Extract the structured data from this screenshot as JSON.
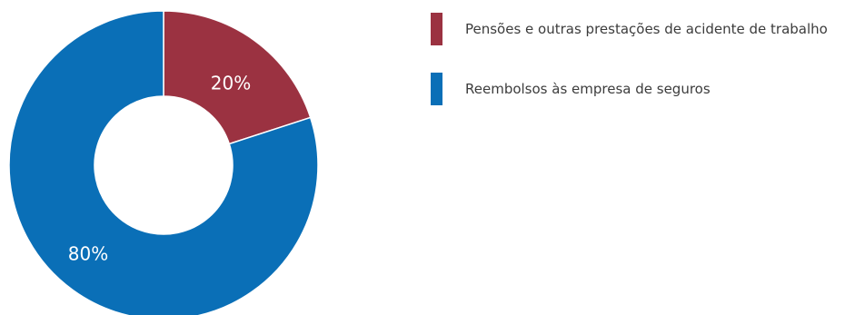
{
  "chart_data": {
    "type": "pie",
    "style": "donut",
    "categories": [
      "Pensões e outras prestações de acidente de trabalho",
      "Reembolsos às empresa de seguros"
    ],
    "values": [
      20,
      80
    ],
    "data_labels": [
      "20%",
      "80%"
    ],
    "colors": [
      "#9b3241",
      "#0a6fb7"
    ],
    "legend_position": "right",
    "title": "",
    "xlabel": "",
    "ylabel": ""
  }
}
